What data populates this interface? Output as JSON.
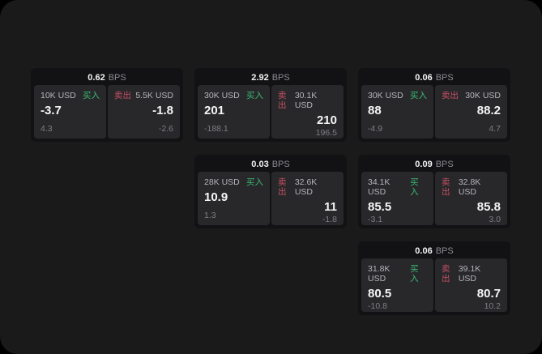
{
  "labels": {
    "bps_unit": "BPS",
    "buy": "买入",
    "sell": "卖出"
  },
  "colors": {
    "outer_bg": "#000000",
    "page_bg": "#1a1a1b",
    "card_bg": "#121214",
    "panel_bg": "#28282b",
    "buy_green": "#3aba72",
    "sell_red": "#c44f63",
    "value_text": "#f5f5f6",
    "muted_text": "#7e7e83"
  },
  "cards": [
    {
      "bps": "0.62",
      "buy": {
        "amount": "10K USD",
        "value": "-3.7",
        "sub": "4.3"
      },
      "sell": {
        "amount": "5.5K USD",
        "value": "-1.8",
        "sub": "-2.6"
      }
    },
    {
      "bps": "2.92",
      "buy": {
        "amount": "30K USD",
        "value": "201",
        "sub": "-188.1"
      },
      "sell": {
        "amount": "30.1K USD",
        "value": "210",
        "sub": "196.5"
      }
    },
    {
      "bps": "0.06",
      "buy": {
        "amount": "30K USD",
        "value": "88",
        "sub": "-4.9"
      },
      "sell": {
        "amount": "30K USD",
        "value": "88.2",
        "sub": "4.7"
      }
    },
    {
      "bps": "0.03",
      "buy": {
        "amount": "28K USD",
        "value": "10.9",
        "sub": "1.3"
      },
      "sell": {
        "amount": "32.6K USD",
        "value": "11",
        "sub": "-1.8"
      }
    },
    {
      "bps": "0.09",
      "buy": {
        "amount": "34.1K USD",
        "value": "85.5",
        "sub": "-3.1"
      },
      "sell": {
        "amount": "32.8K USD",
        "value": "85.8",
        "sub": "3.0"
      }
    },
    {
      "bps": "0.06",
      "buy": {
        "amount": "31.8K USD",
        "value": "80.5",
        "sub": "-10.8"
      },
      "sell": {
        "amount": "39.1K USD",
        "value": "80.7",
        "sub": "10.2"
      }
    }
  ]
}
